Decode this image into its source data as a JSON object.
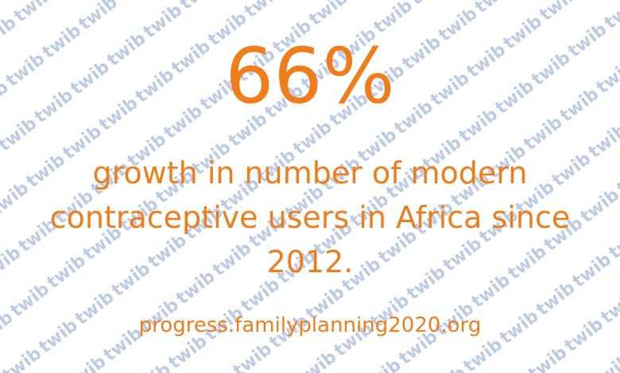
{
  "colors": {
    "accent": "#f07d1b",
    "watermark": "#bccbe3",
    "background": "#ffffff"
  },
  "stat": {
    "value": "66%"
  },
  "description": {
    "text": "growth in number of modern contraceptive users in Africa since 2012."
  },
  "source": {
    "text": "progress.familyplanning2020.org"
  },
  "watermark": {
    "text": "twib:"
  }
}
